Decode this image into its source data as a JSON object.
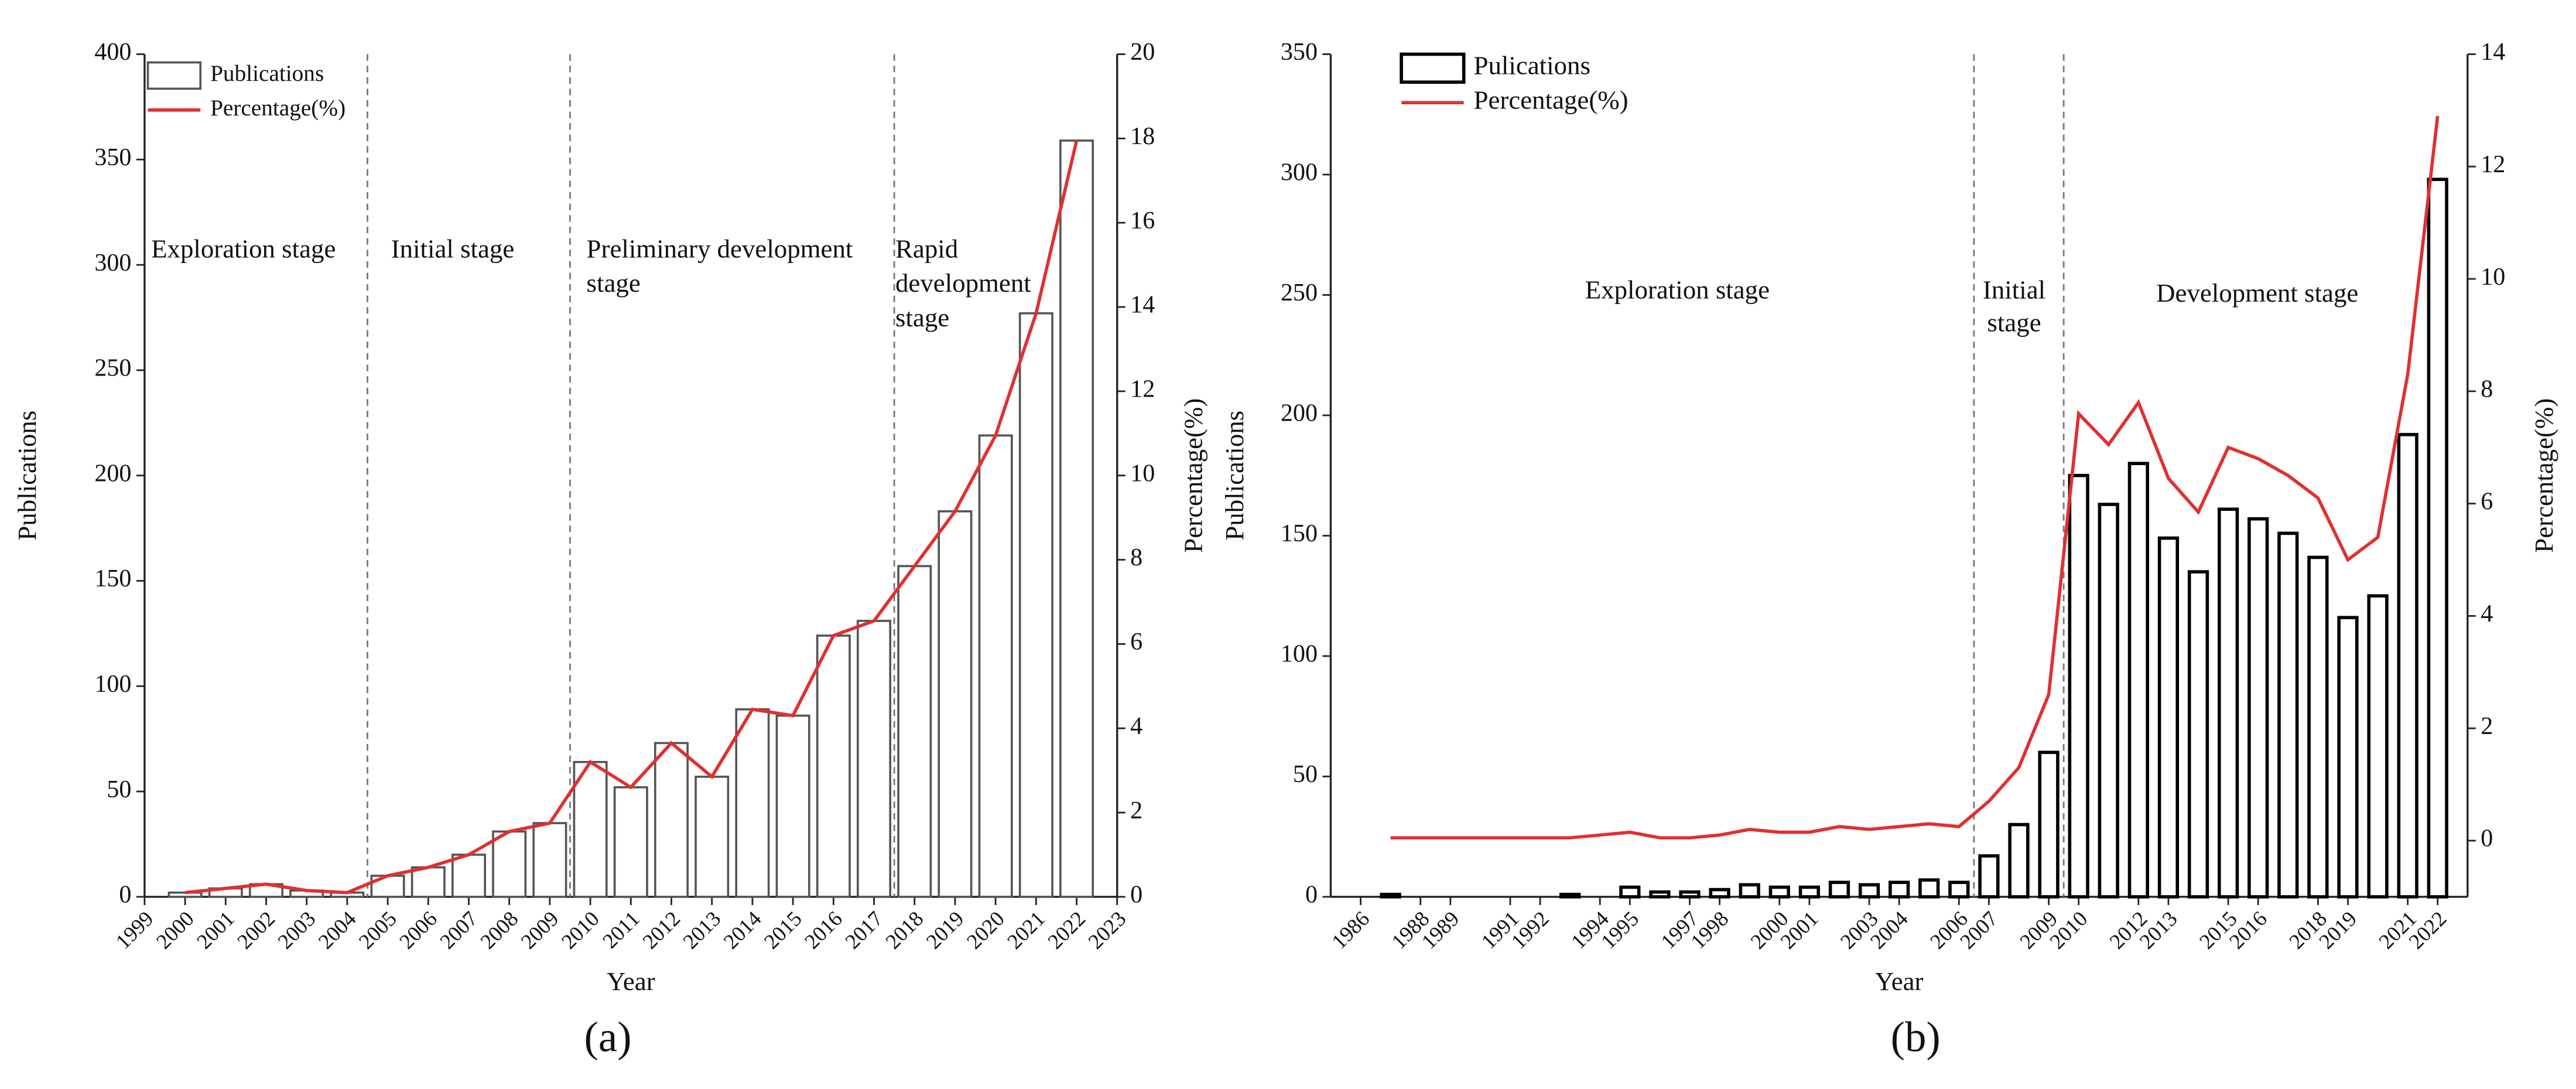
{
  "chart_data": [
    {
      "type": "bar",
      "caption": "(a)",
      "xlabel": "Year",
      "ylabel": "Publications",
      "y2label": "Percentage(%)",
      "legend": "upper left",
      "x": [
        2000,
        2001,
        2002,
        2003,
        2004,
        2005,
        2006,
        2007,
        2008,
        2009,
        2010,
        2011,
        2012,
        2013,
        2014,
        2015,
        2016,
        2017,
        2018,
        2019,
        2020,
        2021,
        2022
      ],
      "xlim": [
        1999,
        2023
      ],
      "xticks": [
        1999,
        2000,
        2001,
        2002,
        2003,
        2004,
        2005,
        2006,
        2007,
        2008,
        2009,
        2010,
        2011,
        2012,
        2013,
        2014,
        2015,
        2016,
        2017,
        2018,
        2019,
        2020,
        2021,
        2022,
        2023
      ],
      "ylim": [
        0,
        400
      ],
      "yticks": [
        0,
        50,
        100,
        150,
        200,
        250,
        300,
        350,
        400
      ],
      "y2lim": [
        0,
        20
      ],
      "y2ticks": [
        0,
        2,
        4,
        6,
        8,
        10,
        12,
        14,
        16,
        18,
        20
      ],
      "stage_boundaries": [
        2004.5,
        2009.5,
        2017.5
      ],
      "annotations": [
        [
          "Exploration stage"
        ],
        [
          "Initial stage"
        ],
        [
          "Preliminary development",
          "stage"
        ],
        [
          "Rapid",
          "development",
          "stage"
        ]
      ],
      "series": [
        {
          "name": "Publications",
          "type": "bar",
          "color": "#555555",
          "values": [
            2,
            4,
            6,
            3,
            2,
            10,
            14,
            20,
            31,
            35,
            64,
            52,
            73,
            57,
            89,
            86,
            124,
            131,
            157,
            183,
            219,
            277,
            359
          ]
        },
        {
          "name": "Percentage(%)",
          "type": "line",
          "axis": "y2",
          "color": "#e03030",
          "values": [
            0.1,
            0.2,
            0.3,
            0.15,
            0.1,
            0.5,
            0.7,
            1.0,
            1.55,
            1.75,
            3.2,
            2.6,
            3.65,
            2.85,
            4.45,
            4.3,
            6.2,
            6.55,
            7.85,
            9.15,
            10.95,
            13.85,
            17.95
          ]
        }
      ]
    },
    {
      "type": "bar",
      "caption": "(b)",
      "xlabel": "Year",
      "ylabel": "Publications",
      "y2label": "Percentage(%)",
      "legend": "upper left",
      "x": [
        1987,
        1993,
        1995,
        1996,
        1997,
        1998,
        1999,
        2000,
        2001,
        2002,
        2003,
        2004,
        2005,
        2006,
        2007,
        2008,
        2009,
        2010,
        2011,
        2012,
        2013,
        2014,
        2015,
        2016,
        2017,
        2018,
        2019,
        2020,
        2021,
        2022
      ],
      "xlim": [
        1985,
        2023
      ],
      "xticks": [
        1986,
        1988,
        1989,
        1991,
        1992,
        1994,
        1995,
        1997,
        1998,
        2000,
        2001,
        2003,
        2004,
        2006,
        2007,
        2009,
        2010,
        2012,
        2013,
        2015,
        2016,
        2018,
        2019,
        2021,
        2022
      ],
      "ylim": [
        0,
        350
      ],
      "yticks": [
        0,
        50,
        100,
        150,
        200,
        250,
        300,
        350
      ],
      "y2lim": [
        -1,
        14
      ],
      "y2ticks": [
        0,
        2,
        4,
        6,
        8,
        10,
        12,
        14
      ],
      "stage_boundaries": [
        2006.5,
        2009.5
      ],
      "annotations": [
        [
          "Exploration stage"
        ],
        [
          "Initial",
          "stage"
        ],
        [
          "Development stage"
        ]
      ],
      "series": [
        {
          "name": "Pulications",
          "type": "bar",
          "color": "#000000",
          "values": [
            1,
            1,
            4,
            2,
            2,
            3,
            5,
            4,
            4,
            6,
            5,
            6,
            7,
            6,
            17,
            30,
            60,
            175,
            163,
            180,
            149,
            135,
            161,
            157,
            151,
            141,
            116,
            125,
            192,
            298
          ]
        },
        {
          "name": "Percentage(%)",
          "type": "line",
          "axis": "y2",
          "color": "#e03030",
          "values": [
            0.05,
            0.05,
            0.15,
            0.05,
            0.05,
            0.1,
            0.2,
            0.15,
            0.15,
            0.25,
            0.2,
            0.25,
            0.3,
            0.25,
            0.7,
            1.3,
            2.6,
            7.6,
            7.05,
            7.8,
            6.45,
            5.85,
            7.0,
            6.8,
            6.5,
            6.1,
            5.0,
            5.4,
            8.3,
            12.9
          ]
        }
      ]
    }
  ]
}
